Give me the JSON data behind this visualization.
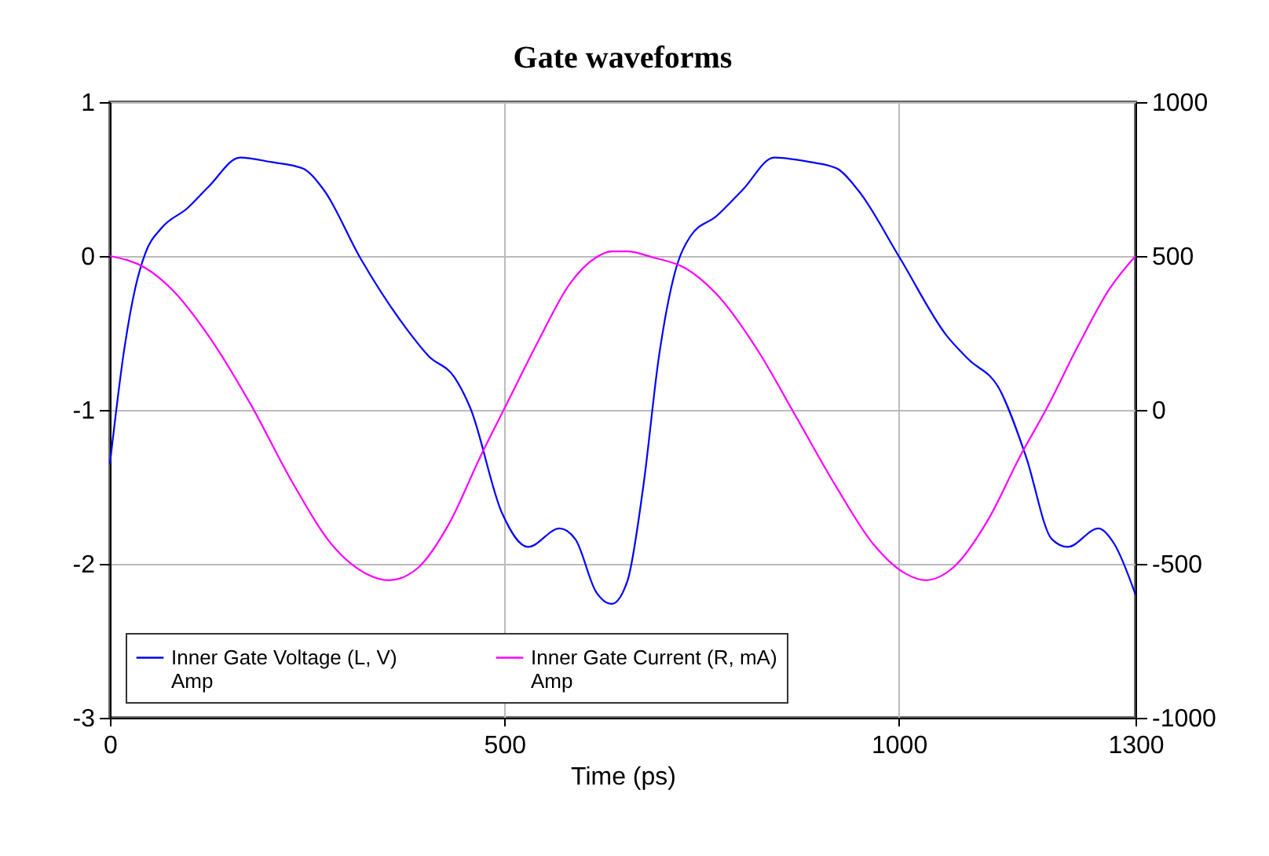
{
  "chart_data": {
    "type": "line",
    "title": "Gate waveforms",
    "xlabel": "Time (ps)",
    "xlim": [
      0,
      1300
    ],
    "xticks": [
      0,
      500,
      1000,
      1300
    ],
    "ylim": [
      -3,
      1
    ],
    "yticks": [
      -3,
      -2,
      -1,
      0,
      1
    ],
    "y2lim": [
      -1000,
      1000
    ],
    "y2ticks": [
      -1000,
      -500,
      0,
      500,
      1000
    ],
    "grid": true,
    "legend": "bottom left",
    "marker": "none",
    "line_style": "solid",
    "series": [
      {
        "name": "Inner Gate Voltage (L, V)\nAmp",
        "color": "#0000ff",
        "x": [
          0,
          18.6,
          32,
          45,
          65,
          98,
          125,
          165,
          205,
          244,
          271,
          317,
          377,
          404,
          437,
          457,
          497,
          530,
          570,
          590,
          616,
          636,
          656,
          676,
          696,
          716,
          736,
          769,
          802,
          842,
          888,
          921,
          948,
          1001,
          1061,
          1088,
          1127,
          1161,
          1194,
          1214,
          1253,
          1273,
          1300
        ],
        "values": [
          -1.35,
          -0.59,
          -0.21,
          0.02,
          0.18,
          0.31,
          0.45,
          0.64,
          0.61,
          0.57,
          0.43,
          -0.01,
          -0.48,
          -0.65,
          -0.79,
          -0.99,
          -1.67,
          -1.89,
          -1.77,
          -1.84,
          -2.18,
          -2.26,
          -2.11,
          -1.5,
          -0.65,
          -0.11,
          0.13,
          0.26,
          0.43,
          0.64,
          0.61,
          0.57,
          0.43,
          -0.01,
          -0.52,
          -0.67,
          -0.86,
          -1.3,
          -1.84,
          -1.89,
          -1.77,
          -1.87,
          -2.2
        ]
      },
      {
        "name": "Inner Gate Current (R, mA)\nAmp",
        "color": "#ff00ff",
        "axis": "y2",
        "x": [
          0,
          45,
          78,
          125,
          178,
          231,
          284,
          324,
          354,
          390,
          430,
          470,
          503,
          543,
          583,
          616,
          636,
          656,
          689,
          729,
          769,
          822,
          868,
          921,
          968,
          1008,
          1034,
          1068,
          1114,
          1154,
          1187,
          1227,
          1267,
          1300
        ],
        "values": [
          500,
          461,
          393,
          241,
          20,
          -234,
          -446,
          -531,
          -553,
          -514,
          -369,
          -149,
          20,
          224,
          410,
          495,
          515,
          515,
          495,
          461,
          376,
          190,
          -14,
          -251,
          -437,
          -531,
          -553,
          -514,
          -353,
          -149,
          3,
          207,
          393,
          500
        ]
      }
    ]
  }
}
